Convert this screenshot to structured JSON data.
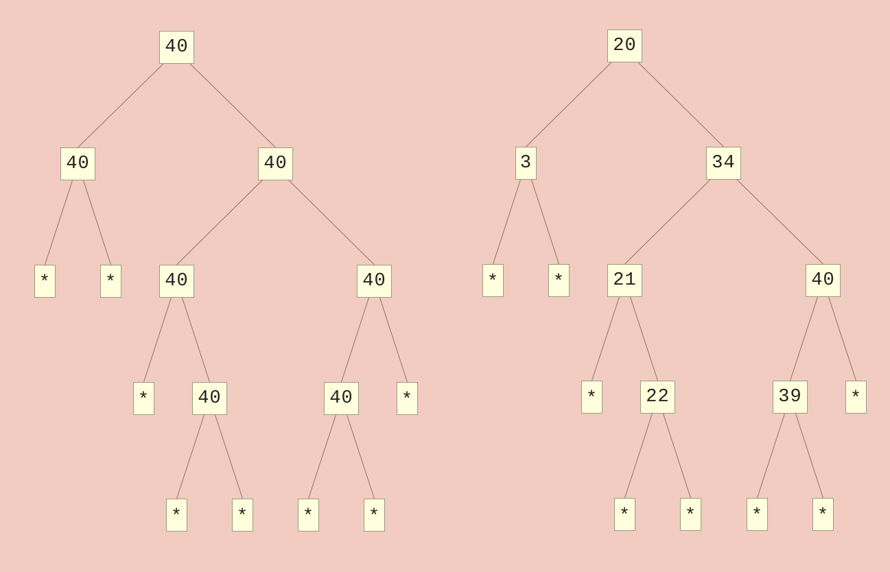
{
  "trees": [
    {
      "root": {
        "value": "40",
        "left": {
          "value": "40",
          "left": {
            "value": "*"
          },
          "right": {
            "value": "*"
          }
        },
        "right": {
          "value": "40",
          "left": {
            "value": "40",
            "left": {
              "value": "*"
            },
            "right": {
              "value": "40",
              "left": {
                "value": "*"
              },
              "right": {
                "value": "*"
              }
            }
          },
          "right": {
            "value": "40",
            "left": {
              "value": "40",
              "left": {
                "value": "*"
              },
              "right": {
                "value": "*"
              }
            },
            "right": {
              "value": "*"
            }
          }
        }
      }
    },
    {
      "root": {
        "value": "20",
        "left": {
          "value": "3",
          "left": {
            "value": "*"
          },
          "right": {
            "value": "*"
          }
        },
        "right": {
          "value": "34",
          "left": {
            "value": "21",
            "left": {
              "value": "*"
            },
            "right": {
              "value": "22",
              "left": {
                "value": "*"
              },
              "right": {
                "value": "*"
              }
            }
          },
          "right": {
            "value": "40",
            "left": {
              "value": "39",
              "left": {
                "value": "*"
              },
              "right": {
                "value": "*"
              }
            },
            "right": {
              "value": "*"
            }
          }
        }
      }
    }
  ],
  "colors": {
    "background": "#f2ccc0",
    "node_fill": "#ffffdd",
    "node_border": "#9a9a86",
    "edge": "#8c7268",
    "text": "#222222"
  }
}
